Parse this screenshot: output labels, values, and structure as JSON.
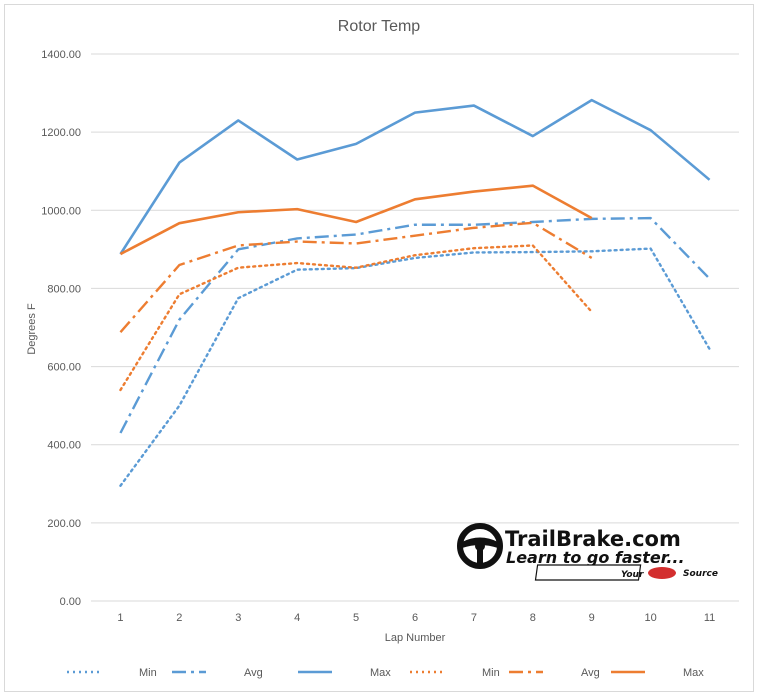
{
  "chart_data": {
    "type": "line",
    "title": "Rotor Temp",
    "xlabel": "Lap Number",
    "ylabel": "Degrees F",
    "categories": [
      "1",
      "2",
      "3",
      "4",
      "5",
      "6",
      "7",
      "8",
      "9",
      "10",
      "11"
    ],
    "ylim": [
      0,
      1400
    ],
    "y_ticks": [
      "0.00",
      "200.00",
      "400.00",
      "600.00",
      "800.00",
      "1000.00",
      "1200.00",
      "1400.00"
    ],
    "grid": "horizontal",
    "legend_position": "bottom",
    "series": [
      {
        "name": "Min",
        "color": "#5b9bd5",
        "style": "dotted",
        "values": [
          295,
          500,
          775,
          848,
          852,
          878,
          892,
          893,
          895,
          902,
          645
        ]
      },
      {
        "name": "Avg",
        "color": "#5b9bd5",
        "style": "dashdot",
        "values": [
          430,
          720,
          900,
          928,
          938,
          963,
          963,
          970,
          978,
          980,
          825
        ]
      },
      {
        "name": "Max",
        "color": "#5b9bd5",
        "style": "solid",
        "values": [
          888,
          1122,
          1230,
          1130,
          1170,
          1250,
          1268,
          1190,
          1282,
          1205,
          1078
        ]
      },
      {
        "name": "Min",
        "color": "#ed7d31",
        "style": "dotted",
        "values": [
          540,
          785,
          853,
          865,
          853,
          885,
          903,
          910,
          740,
          null,
          null
        ]
      },
      {
        "name": "Avg",
        "color": "#ed7d31",
        "style": "dashdot",
        "values": [
          688,
          860,
          910,
          920,
          915,
          935,
          955,
          968,
          878,
          null,
          null
        ]
      },
      {
        "name": "Max",
        "color": "#ed7d31",
        "style": "solid",
        "values": [
          888,
          967,
          995,
          1003,
          970,
          1028,
          1048,
          1063,
          980,
          null,
          null
        ]
      }
    ]
  },
  "logo": {
    "brand": "TrailBrake.com",
    "tagline": "Learn to go faster...",
    "badge_your": "Your",
    "badge_source": "Source"
  },
  "colors": {
    "blue": "#5b9bd5",
    "orange": "#ed7d31",
    "grid": "#d9d9d9",
    "text": "#595959"
  }
}
